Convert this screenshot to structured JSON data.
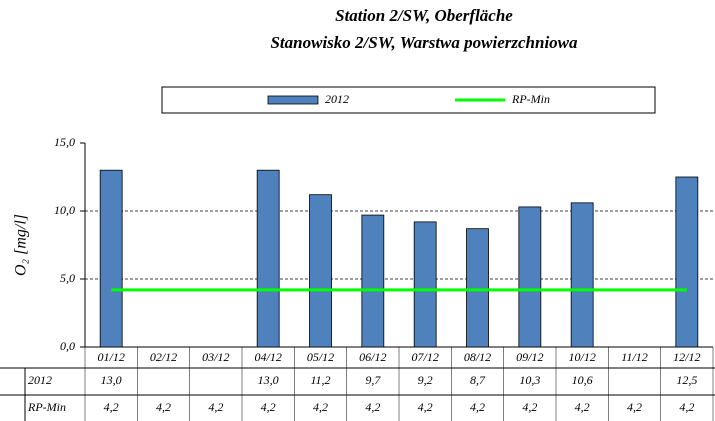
{
  "chart_data": {
    "type": "bar",
    "title": "Station 2/SW, Oberfläche",
    "subtitle": "Stanowisko 2/SW, Warstwa powierzchniowa",
    "y_label": "O₂ [mg/l]",
    "categories": [
      "01/12",
      "02/12",
      "03/12",
      "04/12",
      "05/12",
      "06/12",
      "07/12",
      "08/12",
      "09/12",
      "10/12",
      "11/12",
      "12/12"
    ],
    "series": [
      {
        "name": "2012",
        "type": "bar",
        "color": "#4f81bd",
        "values": [
          13.0,
          null,
          null,
          13.0,
          11.2,
          9.7,
          9.2,
          8.7,
          10.3,
          10.6,
          null,
          12.5
        ],
        "value_labels": [
          "13,0",
          null,
          null,
          "13,0",
          "11,2",
          "9,7",
          "9,2",
          "8,7",
          "10,3",
          "10,6",
          null,
          "12,5"
        ]
      },
      {
        "name": "RP-Min",
        "type": "line",
        "color": "#00ff00",
        "values": [
          4.2,
          4.2,
          4.2,
          4.2,
          4.2,
          4.2,
          4.2,
          4.2,
          4.2,
          4.2,
          4.2,
          4.2
        ],
        "value_labels": [
          "4,2",
          "4,2",
          "4,2",
          "4,2",
          "4,2",
          "4,2",
          "4,2",
          "4,2",
          "4,2",
          "4,2",
          "4,2",
          "4,2"
        ]
      }
    ],
    "ylim": [
      0,
      15
    ],
    "yticks": [
      {
        "value": 0,
        "label": "0,0"
      },
      {
        "value": 5,
        "label": "5,0"
      },
      {
        "value": 10,
        "label": "10,0"
      },
      {
        "value": 15,
        "label": "15,0"
      }
    ],
    "grid": true,
    "legend": "top",
    "data_table": true
  }
}
